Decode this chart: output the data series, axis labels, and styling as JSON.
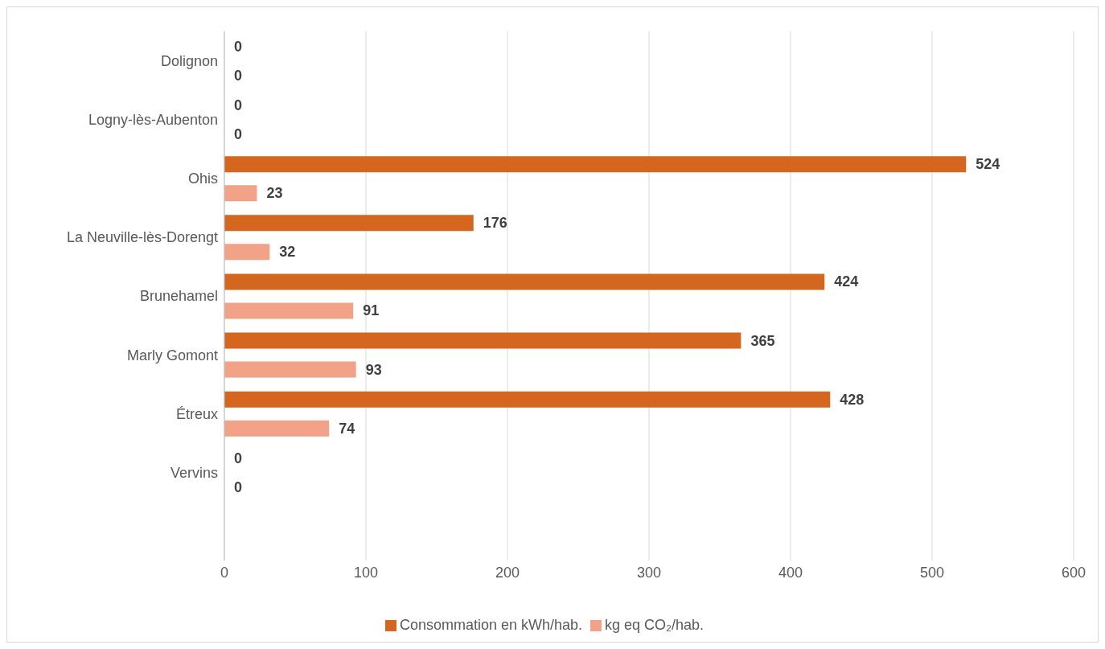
{
  "chart_data": {
    "type": "bar",
    "orientation": "horizontal",
    "categories": [
      "Dolignon",
      "Logny-lès-Aubenton",
      "Ohis",
      "La Neuville-lès-Dorengt",
      "Brunehamel",
      "Marly Gomont",
      "Étreux",
      "Vervins",
      null
    ],
    "series": [
      {
        "name": "Consommation en kWh/hab.",
        "color": "#d4661f",
        "values": [
          0,
          0,
          524,
          176,
          424,
          365,
          428,
          0,
          null
        ]
      },
      {
        "name": "kg eq CO₂/hab.",
        "color": "#f2a287",
        "values": [
          0,
          0,
          23,
          32,
          91,
          93,
          74,
          0,
          null
        ]
      }
    ],
    "xlim": [
      0,
      600
    ],
    "xticks": [
      0,
      100,
      200,
      300,
      400,
      500,
      600
    ],
    "grid": "x",
    "legend": "bottom",
    "data_labels": true
  }
}
